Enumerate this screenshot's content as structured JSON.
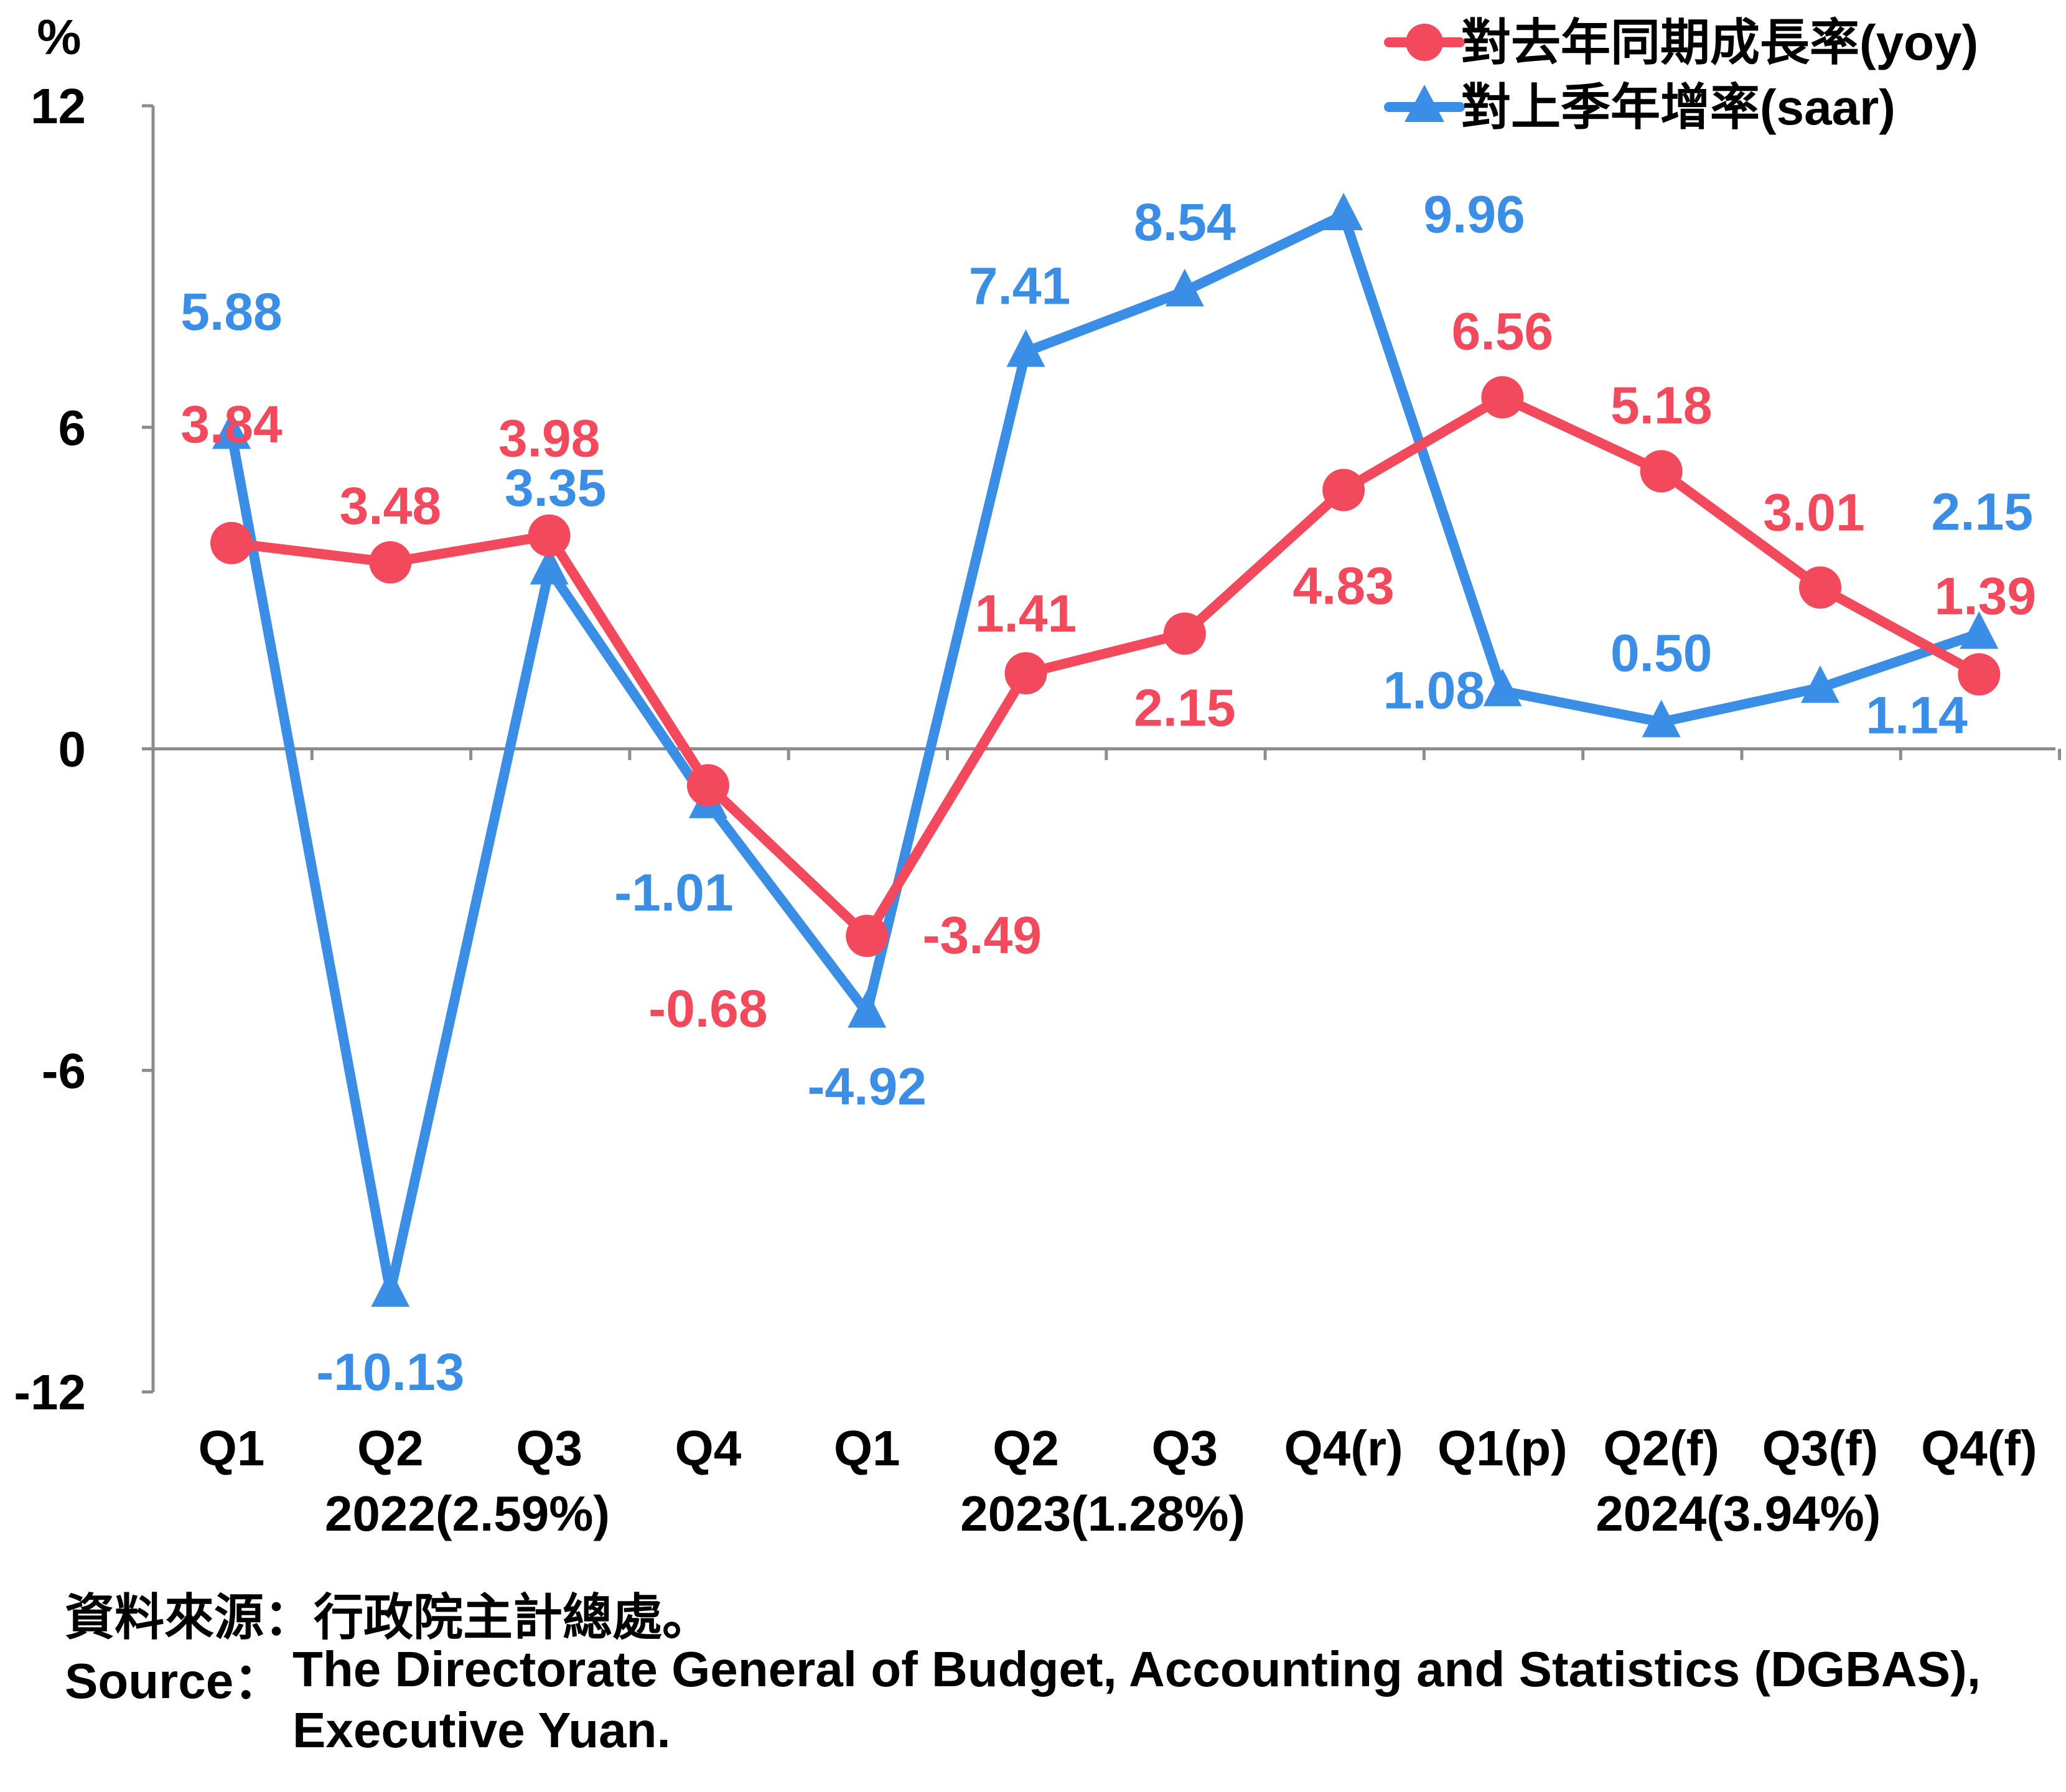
{
  "chart_data": {
    "type": "line",
    "unit": "%",
    "categories": [
      "Q1",
      "Q2",
      "Q3",
      "Q4",
      "Q1",
      "Q2",
      "Q3",
      "Q4(r)",
      "Q1(p)",
      "Q2(f)",
      "Q3(f)",
      "Q4(f)"
    ],
    "year_groups": [
      {
        "label": "2022(2.59%)",
        "start": 0,
        "end": 3
      },
      {
        "label": "2023(1.28%)",
        "start": 4,
        "end": 7
      },
      {
        "label": "2024(3.94%)",
        "start": 8,
        "end": 11
      }
    ],
    "y_ticks": [
      12,
      6,
      0,
      -6,
      -12
    ],
    "y_tick_labels": [
      "12",
      "6",
      "0",
      "-6",
      "-12"
    ],
    "ylim": [
      -12,
      12
    ],
    "grid": false,
    "legend_position": "top-right",
    "series": [
      {
        "name": "對去年同期成長率(yoy)",
        "color": "#F2495C",
        "marker": "circle",
        "values": [
          3.84,
          3.48,
          3.98,
          -0.68,
          -3.49,
          1.41,
          2.15,
          4.83,
          6.56,
          5.18,
          3.01,
          1.39
        ],
        "labels": [
          "3.84",
          "3.48",
          "3.98",
          "-0.68",
          "-3.49",
          "1.41",
          "2.15",
          "4.83",
          "6.56",
          "5.18",
          "3.01",
          "1.39"
        ]
      },
      {
        "name": "對上季年增率(saar)",
        "color": "#3A8EE6",
        "marker": "triangle",
        "values": [
          5.88,
          -10.13,
          3.35,
          -1.01,
          -4.92,
          7.41,
          8.54,
          9.96,
          1.08,
          0.5,
          1.14,
          2.15
        ],
        "labels": [
          "5.88",
          "-10.13",
          "3.35",
          "-1.01",
          "-4.92",
          "7.41",
          "8.54",
          "9.96",
          "1.08",
          "0.50",
          "1.14",
          "2.15"
        ]
      }
    ]
  },
  "source": {
    "zh": "資料來源：行政院主計總處。",
    "en_prefix": "Source：",
    "en_line1": "The Directorate General of Budget, Accounting and Statistics (DGBAS),",
    "en_line2": "Executive Yuan."
  }
}
